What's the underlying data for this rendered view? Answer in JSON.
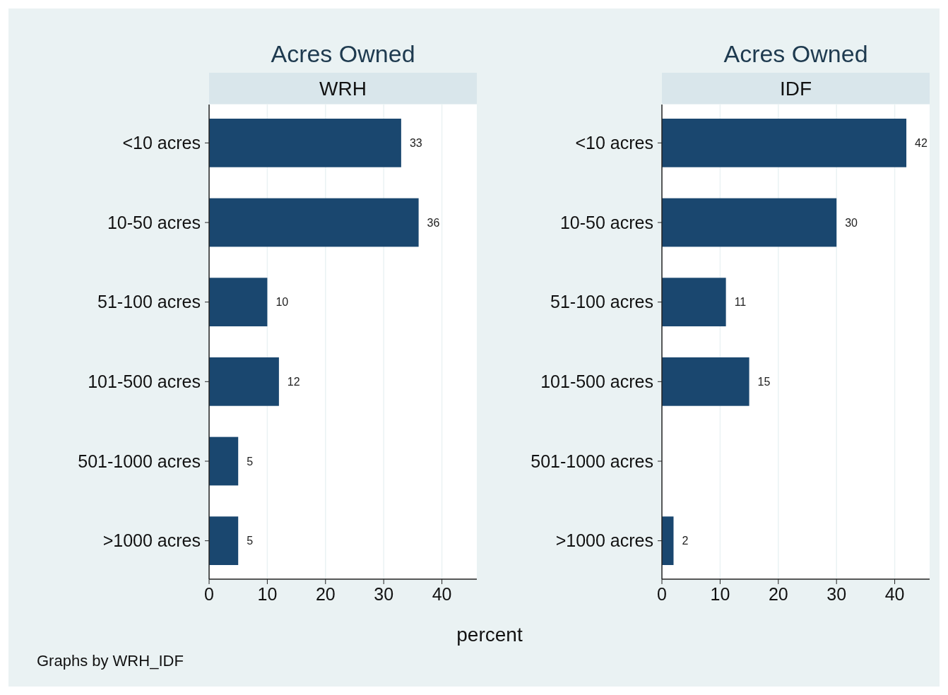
{
  "chart_data": [
    {
      "type": "bar",
      "orientation": "horizontal",
      "title": "Acres Owned",
      "subtitle": "WRH",
      "xlabel": "percent",
      "categories": [
        "<10 acres",
        "10-50 acres",
        "51-100 acres",
        "101-500 acres",
        "501-1000 acres",
        ">1000 acres"
      ],
      "values": [
        33,
        36,
        10,
        12,
        5,
        5
      ],
      "color": "#1a476f",
      "xlim": [
        0,
        46
      ],
      "xticks": [
        0,
        10,
        20,
        30,
        40
      ],
      "grid": "x",
      "data_labels": true,
      "annotations": [
        "Graphs by WRH_IDF"
      ]
    },
    {
      "type": "bar",
      "orientation": "horizontal",
      "title": "Acres Owned",
      "subtitle": "IDF",
      "categories": [
        "<10 acres",
        "10-50 acres",
        "51-100 acres",
        "101-500 acres",
        "501-1000 acres",
        ">1000 acres"
      ],
      "values": [
        42,
        30,
        11,
        15,
        null,
        2
      ],
      "color": "#1a476f",
      "xlim": [
        0,
        46
      ],
      "xticks": [
        0,
        10,
        20,
        30,
        40
      ],
      "grid": "x",
      "data_labels": true
    }
  ]
}
